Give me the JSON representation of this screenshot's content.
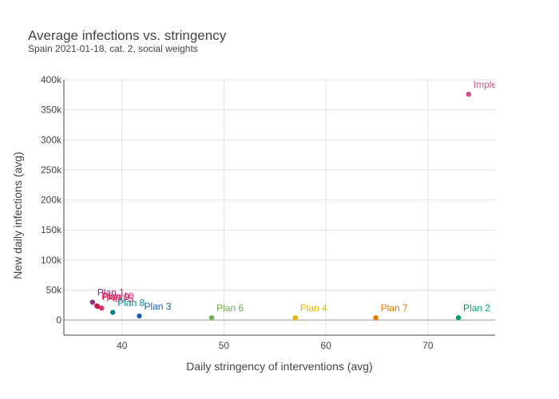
{
  "title": "Average infections vs. stringency",
  "subtitle": "Spain 2021-01-18, cat. 2, social weights",
  "chart_data": {
    "type": "scatter",
    "title": "Average infections vs. stringency",
    "subtitle": "Spain 2021-01-18, cat. 2, social weights",
    "xlabel": "Daily stringency of interventions (avg)",
    "ylabel": "New daily infections (avg)",
    "xlim": [
      34.3,
      76.6
    ],
    "ylim": [
      -25000,
      400000
    ],
    "x_ticks": [
      40,
      50,
      60,
      70
    ],
    "x_tick_labels": [
      "40",
      "50",
      "60",
      "70"
    ],
    "y_ticks": [
      0,
      50000,
      100000,
      150000,
      200000,
      250000,
      300000,
      350000,
      400000
    ],
    "y_tick_labels": [
      "0",
      "50k",
      "100k",
      "150k",
      "200k",
      "250k",
      "300k",
      "350k",
      "400k"
    ],
    "grid": true,
    "legend": "none",
    "points": [
      {
        "label": "Plan 1",
        "x": 37.1,
        "y": 30000,
        "color": "#8c2d7a"
      },
      {
        "label": "Plan 10",
        "x": 37.5,
        "y": 24000,
        "color": "#e8467c"
      },
      {
        "label": "Plan 9",
        "x": 37.6,
        "y": 23000,
        "color": "#c2185b"
      },
      {
        "label": "Plan 5",
        "x": 38.0,
        "y": 20000,
        "color": "#d6336c"
      },
      {
        "label": "Plan 8",
        "x": 39.1,
        "y": 13000,
        "color": "#00838f"
      },
      {
        "label": "Plan 3",
        "x": 41.7,
        "y": 7000,
        "color": "#1e5fa8"
      },
      {
        "label": "Plan 6",
        "x": 48.8,
        "y": 4000,
        "color": "#6ab04c"
      },
      {
        "label": "Plan 4",
        "x": 57.0,
        "y": 4000,
        "color": "#e5b800"
      },
      {
        "label": "Plan 7",
        "x": 64.9,
        "y": 4000,
        "color": "#e07b00"
      },
      {
        "label": "Plan 2",
        "x": 73.0,
        "y": 4000,
        "color": "#009e73"
      },
      {
        "label": "Implemented",
        "x": 74.0,
        "y": 376000,
        "color": "#d94f8c"
      }
    ]
  }
}
